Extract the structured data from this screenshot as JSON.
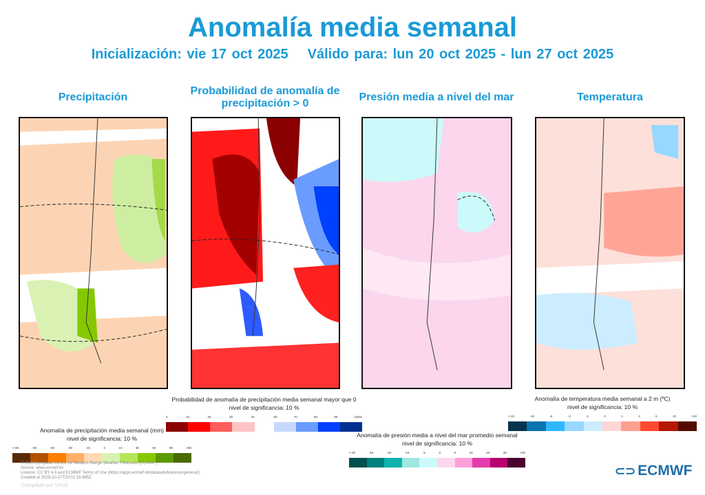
{
  "header": {
    "title": "Anomalía media semanal",
    "init": "Inicialización: vie 17 oct 2025",
    "valid": "Válido para: lun 20 oct 2025 - lun 27 oct 2025"
  },
  "panels": [
    {
      "title": "Precipitación",
      "bg": "#fdd4b3"
    },
    {
      "title": "Probabilidad de anomalía de precipitación > 0",
      "bg": "#ffffff"
    },
    {
      "title": "Presión media a nivel del mar",
      "bg": "#fbd6ec"
    },
    {
      "title": "Temperatura",
      "bg": "#fde0da"
    }
  ],
  "legends": {
    "precip": {
      "line1": "Anomalía de precipitación media semanal (mm)",
      "line2": "nivel de significancia: 10 %",
      "ticks": [
        "<-90",
        "-90",
        "-60",
        "-30",
        "-10",
        "0",
        "10",
        "30",
        "60",
        "90",
        ">90"
      ],
      "colors": [
        "#5a2a05",
        "#b25200",
        "#ff8000",
        "#ffb066",
        "#ffd8b5",
        "#d9f2b3",
        "#b6e55a",
        "#86c800",
        "#5b9a00",
        "#4a6b00"
      ]
    },
    "prob": {
      "line1": "Probabilidad de anomalía de precipitación media semanal mayor que 0",
      "line2": "nivel de significancia: 10 %",
      "ticks_low": [
        "0",
        "10",
        "20",
        "30",
        "40"
      ],
      "ticks_high": [
        "60",
        "70",
        "80",
        "90",
        "100%"
      ],
      "colors_low": [
        "#8b0000",
        "#ff0000",
        "#ff5c5c",
        "#ffc4c4"
      ],
      "colors_high": [
        "#c6d8ff",
        "#6a9bff",
        "#0040ff",
        "#00308f"
      ]
    },
    "pressure": {
      "line1": "Anomalía de presión media a nivel del mar promedio semanal",
      "line2": "nivel de significancia: 10 %",
      "ticks": [
        "<-40",
        "-40",
        "-20",
        "-10",
        "-5",
        "0",
        "5",
        "10",
        "20",
        "40",
        ">40"
      ],
      "colors": [
        "#00504f",
        "#007f7c",
        "#10b3ac",
        "#a0e6e1",
        "#ccfafa",
        "#fdd6ee",
        "#fc9ed8",
        "#e23cad",
        "#b8006f",
        "#4c0030"
      ]
    },
    "temp": {
      "line1": "Anomalía de temperatura media semanal a 2 m (ºC)",
      "line2": "nivel de significancia: 10 %",
      "ticks": [
        "<-10",
        "-10",
        "-6",
        "-3",
        "-1",
        "0",
        "1",
        "3",
        "6",
        "10",
        ">10"
      ],
      "colors": [
        "#06344f",
        "#0a73b0",
        "#2eb8ff",
        "#96d8ff",
        "#cbedff",
        "#ffd6d6",
        "#ff9f8f",
        "#ff4a2e",
        "#b41800",
        "#540a00"
      ]
    }
  },
  "footer": {
    "l1": "© 2025 European Centre for Medium-Range Weather Forecasts (ECMWF)",
    "l2": "Source: www.ecmwf.int",
    "l3": "Licence: CC BY 4.0 and ECMWF Terms of Use (https://apps.ecmwf.int/datasets/licences/general/)",
    "l4": "Created at 2025-10-17T20:01:19.885Z",
    "compiled": "Compilado por VVUG",
    "logo": "ECMWF"
  }
}
